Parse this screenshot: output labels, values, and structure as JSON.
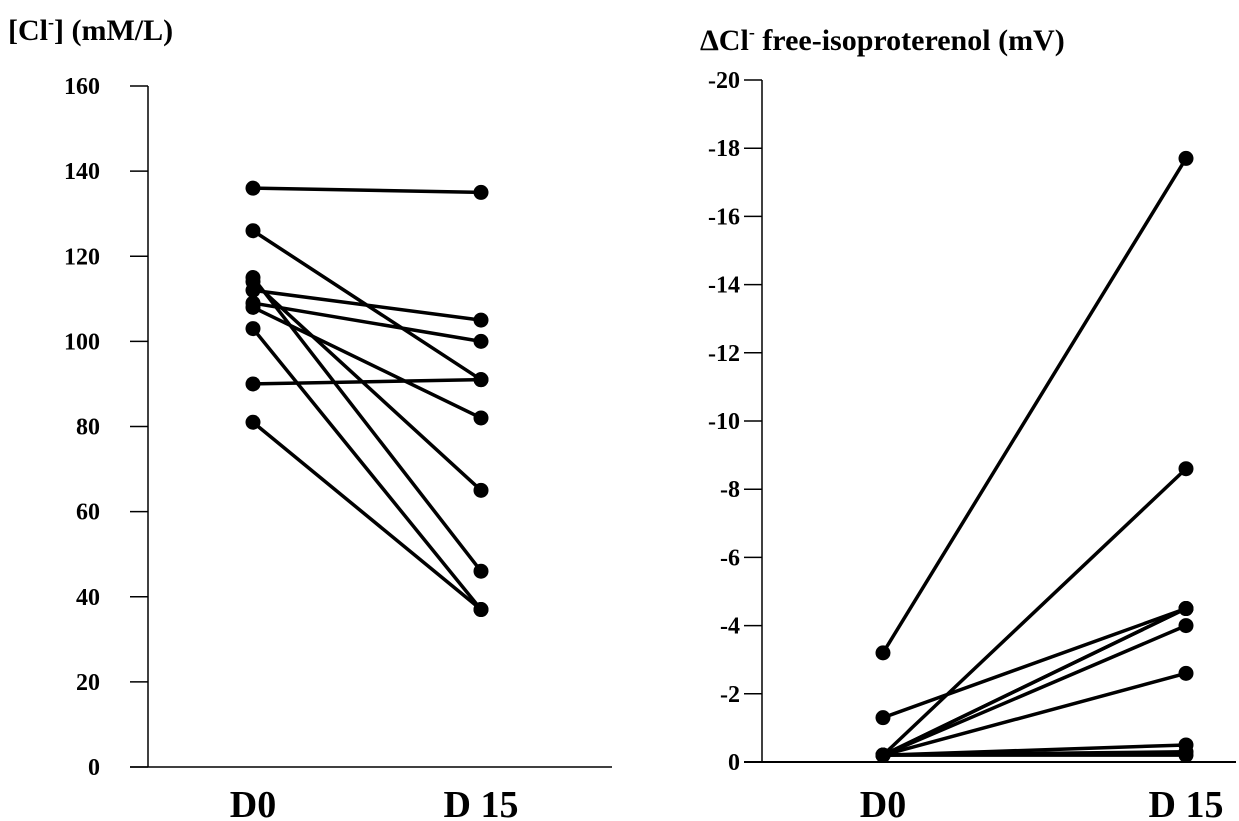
{
  "chart_data": [
    {
      "type": "line",
      "title": "[Cl-] (mM/L)",
      "title_main": "[Cl",
      "title_sup": "-",
      "title_rest": "] (mM/L)",
      "categories": [
        "D0",
        "D 15"
      ],
      "ylim": [
        0,
        160
      ],
      "yticks": [
        0,
        20,
        40,
        60,
        80,
        100,
        120,
        140,
        160
      ],
      "ytick_labels": [
        "0",
        "20",
        "40",
        "60",
        "80",
        "100",
        "120",
        "140",
        "160"
      ],
      "series": [
        {
          "values": [
            136,
            135
          ]
        },
        {
          "values": [
            126,
            91
          ]
        },
        {
          "values": [
            115,
            46
          ]
        },
        {
          "values": [
            114,
            65
          ]
        },
        {
          "values": [
            112,
            105
          ]
        },
        {
          "values": [
            109,
            100
          ]
        },
        {
          "values": [
            108,
            82
          ]
        },
        {
          "values": [
            103,
            37
          ]
        },
        {
          "values": [
            90,
            91
          ]
        },
        {
          "values": [
            81,
            37
          ]
        }
      ]
    },
    {
      "type": "line",
      "title": "ΔCl- free-isoproterenol (mV)",
      "title_main": "ΔCl",
      "title_sup": "-",
      "title_rest": " free-isoproterenol (mV)",
      "categories": [
        "D0",
        "D 15"
      ],
      "ylim": [
        0,
        -20
      ],
      "yticks": [
        0,
        -2,
        -4,
        -6,
        -8,
        -10,
        -12,
        -14,
        -16,
        -18,
        -20
      ],
      "ytick_labels": [
        "0",
        "-2",
        "-4",
        "-6",
        "-8",
        "-10",
        "-12",
        "-14",
        "-16",
        "-18",
        "-20"
      ],
      "series": [
        {
          "values": [
            -3.2,
            -17.7
          ]
        },
        {
          "values": [
            -1.3,
            -4.5
          ]
        },
        {
          "values": [
            -0.2,
            -8.6
          ]
        },
        {
          "values": [
            -0.2,
            -4.5
          ]
        },
        {
          "values": [
            -0.2,
            -4.5
          ]
        },
        {
          "values": [
            -0.2,
            -4.0
          ]
        },
        {
          "values": [
            -0.2,
            -2.6
          ]
        },
        {
          "values": [
            -0.2,
            -0.5
          ]
        },
        {
          "values": [
            -0.2,
            -0.3
          ]
        },
        {
          "values": [
            -0.2,
            -0.2
          ]
        }
      ]
    }
  ]
}
